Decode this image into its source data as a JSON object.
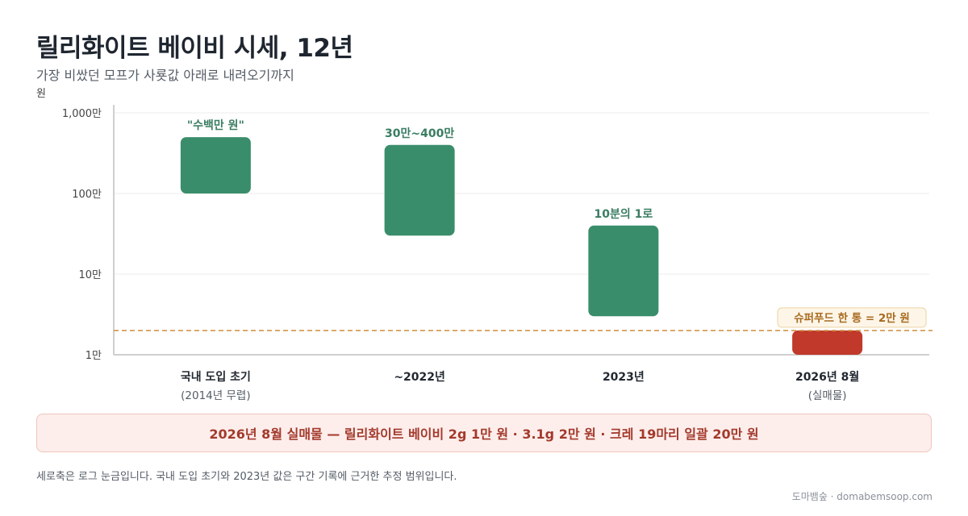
{
  "header": {
    "title": "릴리화이트 베이비 시세, 12년",
    "subtitle": "가장 비쌌던 모프가 사룟값 아래로 내려오기까지"
  },
  "chart_data": {
    "type": "bar",
    "scale": "log",
    "ylabel": "원",
    "ylim": [
      10000,
      10000000
    ],
    "yticks": [
      {
        "value": 10000,
        "label": "1만"
      },
      {
        "value": 100000,
        "label": "10만"
      },
      {
        "value": 1000000,
        "label": "100만"
      },
      {
        "value": 10000000,
        "label": "1,000만"
      }
    ],
    "grid": true,
    "categories": [
      {
        "label": "국내 도입 초기",
        "sublabel": "(2014년 무렵)"
      },
      {
        "label": "~2022년",
        "sublabel": ""
      },
      {
        "label": "2023년",
        "sublabel": ""
      },
      {
        "label": "2026년 8월",
        "sublabel": "(실매물)"
      }
    ],
    "ranges": [
      {
        "low": 1000000,
        "high": 5000000,
        "label": "\"수백만 원\"",
        "color": "#3a8d6b"
      },
      {
        "low": 300000,
        "high": 4000000,
        "label": "30만~400만",
        "color": "#3a8d6b"
      },
      {
        "low": 30000,
        "high": 400000,
        "label": "10분의 1로",
        "color": "#3a8d6b"
      },
      {
        "low": 10000,
        "high": 20000,
        "label": "",
        "color": "#c0392b"
      }
    ],
    "reference_line": {
      "value": 20000,
      "label": "슈퍼푸드 한 통 = 2만 원",
      "color": "#d4964a"
    }
  },
  "banner": {
    "text": "2026년 8월 실매물 — 릴리화이트 베이비 2g 1만 원 · 3.1g 2만 원 · 크레 19마리 일괄 20만 원"
  },
  "footnote": "세로축은 로그 눈금입니다. 국내 도입 초기와 2023년 값은 구간 기록에 근거한 추정 범위입니다.",
  "credit": "도마뱀숲 · domabemsoop.com"
}
